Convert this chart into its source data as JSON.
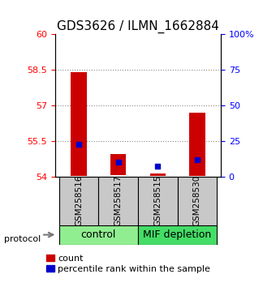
{
  "title": "GDS3626 / ILMN_1662884",
  "samples": [
    "GSM258516",
    "GSM258517",
    "GSM258515",
    "GSM258530"
  ],
  "groups": [
    {
      "name": "control",
      "color": "#90EE90",
      "indices": [
        0,
        1
      ]
    },
    {
      "name": "MIF depletion",
      "color": "#44DD66",
      "indices": [
        2,
        3
      ]
    }
  ],
  "red_bar_bottoms": [
    54.02,
    54.05,
    54.02,
    54.02
  ],
  "red_bar_tops": [
    58.4,
    54.95,
    54.12,
    56.7
  ],
  "blue_percentiles": [
    22.5,
    10.3,
    7.5,
    12.0
  ],
  "ylim_left": [
    54.0,
    60.0
  ],
  "yticks_left": [
    54,
    55.5,
    57,
    58.5,
    60
  ],
  "ylim_right": [
    0,
    100
  ],
  "yticks_right": [
    0,
    25,
    50,
    75,
    100
  ],
  "yticklabels_right": [
    "0",
    "25",
    "50",
    "75",
    "100%"
  ],
  "red_color": "#CC0000",
  "blue_color": "#0000CC",
  "grid_color": "#888888",
  "sample_box_color": "#C8C8C8",
  "title_fontsize": 11,
  "tick_fontsize": 8,
  "legend_fontsize": 8,
  "group_fontsize": 9
}
